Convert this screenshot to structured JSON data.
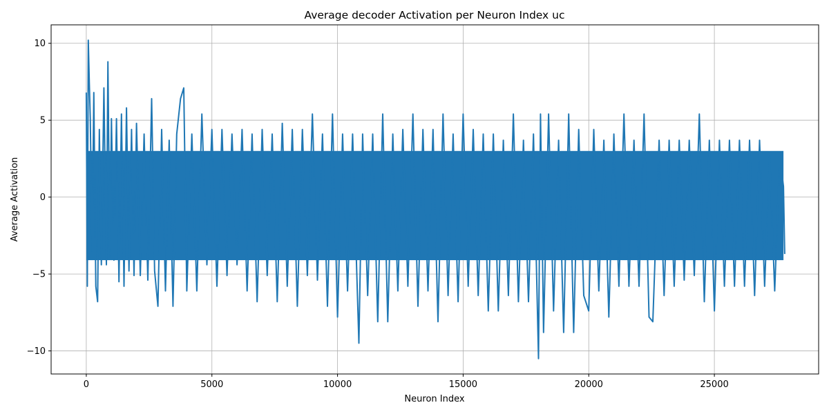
{
  "chart_data": {
    "type": "line",
    "title": "Average decoder Activation per Neuron Index uc",
    "xlabel": "Neuron Index",
    "ylabel": "Average Activation",
    "xlim": [
      -1400,
      29150
    ],
    "ylim": [
      -11.5,
      11.2
    ],
    "x_ticks": [
      0,
      5000,
      10000,
      15000,
      20000,
      25000
    ],
    "y_ticks": [
      -10,
      -5,
      0,
      5,
      10
    ],
    "grid": true,
    "legend": "none",
    "color": "#1f77b4",
    "series": [
      {
        "x": [
          0,
          40,
          80,
          120,
          160,
          230,
          300,
          380,
          450,
          520,
          600,
          700,
          800,
          860,
          940,
          1000,
          1100,
          1200,
          1300,
          1400,
          1500,
          1600,
          1700,
          1800,
          1900,
          2000,
          2150,
          2300,
          2450,
          2600,
          2720,
          2850,
          3000,
          3150,
          3300,
          3450,
          3600,
          3750,
          3880,
          4000,
          4200,
          4400,
          4600,
          4800,
          5000,
          5200,
          5400,
          5600,
          5800,
          6000,
          6200,
          6400,
          6600,
          6800,
          7000,
          7200,
          7400,
          7600,
          7800,
          8000,
          8200,
          8400,
          8600,
          8800,
          9000,
          9200,
          9400,
          9600,
          9800,
          10000,
          10200,
          10400,
          10600,
          10850,
          11000,
          11200,
          11400,
          11600,
          11800,
          12000,
          12200,
          12400,
          12600,
          12800,
          13000,
          13200,
          13400,
          13600,
          13800,
          14000,
          14200,
          14400,
          14600,
          14800,
          15000,
          15200,
          15400,
          15600,
          15800,
          16000,
          16200,
          16400,
          16600,
          16800,
          17000,
          17200,
          17400,
          17600,
          17800,
          18000,
          18080,
          18200,
          18400,
          18600,
          18800,
          19000,
          19200,
          19400,
          19600,
          19800,
          20000,
          20200,
          20400,
          20600,
          20800,
          21000,
          21200,
          21400,
          21600,
          21800,
          22000,
          22200,
          22400,
          22550,
          22800,
          23000,
          23200,
          23400,
          23600,
          23800,
          24000,
          24200,
          24400,
          24600,
          24800,
          25000,
          25200,
          25400,
          25600,
          25800,
          26000,
          26200,
          26400,
          26600,
          26800,
          27000,
          27200,
          27400,
          27600,
          27750,
          27800
        ],
        "values": [
          6.8,
          -5.8,
          10.2,
          7.4,
          5.1,
          -3.5,
          6.8,
          -5.8,
          -6.8,
          4.4,
          -4.4,
          7.1,
          -4.4,
          8.8,
          -3.8,
          5.1,
          -4.1,
          5.1,
          -5.5,
          5.4,
          -5.8,
          5.8,
          -4.8,
          4.4,
          -5.1,
          4.8,
          -5.1,
          4.1,
          -5.4,
          6.4,
          -4.8,
          -7.1,
          4.4,
          -6.1,
          3.7,
          -7.1,
          4.1,
          6.4,
          7.1,
          -6.1,
          4.1,
          -6.1,
          5.4,
          -4.4,
          4.4,
          -5.8,
          4.4,
          -5.1,
          4.1,
          -4.4,
          4.4,
          -6.1,
          4.1,
          -6.8,
          4.4,
          -5.1,
          4.1,
          -6.8,
          4.8,
          -5.8,
          4.4,
          -7.1,
          4.4,
          -5.1,
          5.4,
          -5.4,
          4.1,
          -7.1,
          5.4,
          -7.8,
          4.1,
          -6.1,
          4.1,
          -9.5,
          4.1,
          -6.4,
          4.1,
          -8.1,
          5.4,
          -8.1,
          4.1,
          -6.1,
          4.4,
          -5.8,
          5.4,
          -7.1,
          4.4,
          -6.1,
          4.4,
          -8.1,
          5.4,
          -6.4,
          4.1,
          -6.8,
          5.4,
          -5.8,
          4.4,
          -6.4,
          4.1,
          -7.4,
          4.1,
          -7.4,
          3.7,
          -6.4,
          5.4,
          -6.8,
          3.7,
          -6.8,
          4.1,
          -10.5,
          5.4,
          -8.8,
          5.4,
          -7.4,
          3.7,
          -8.8,
          5.4,
          -8.8,
          4.4,
          -6.4,
          -7.4,
          4.4,
          -6.1,
          3.7,
          -7.8,
          4.1,
          -5.8,
          5.4,
          -5.8,
          3.7,
          -5.8,
          5.4,
          -7.8,
          -8.1,
          3.7,
          -6.4,
          3.7,
          -5.8,
          3.7,
          -5.4,
          3.7,
          -5.1,
          5.4,
          -6.8,
          3.7,
          -7.4,
          3.7,
          -5.8,
          3.7,
          -5.8,
          3.7,
          -5.8,
          3.7,
          -6.4,
          3.7,
          -5.8,
          2.7,
          -6.1,
          2.7,
          0.7,
          -3.7
        ]
      }
    ]
  }
}
